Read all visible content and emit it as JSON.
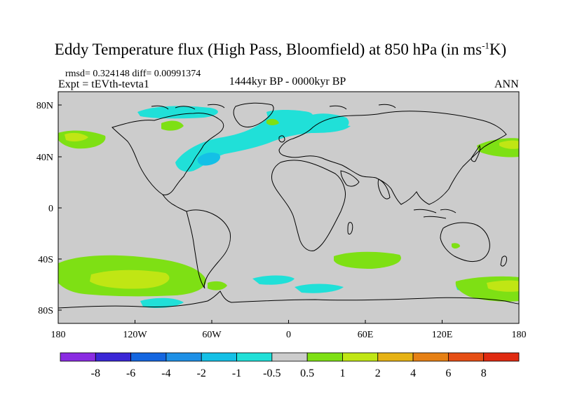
{
  "title_main": "Eddy Temperature flux (High Pass, Bloomfield) at 850 hPa (in ms",
  "title_sup": "-1",
  "title_end": "K)",
  "stats": "rmsd= 0.324148 diff= 0.00991374",
  "expt": "Expt = tEVth-tevta1",
  "period": "1444kyr BP - 0000kyr BP",
  "season": "ANN",
  "lat_labels": [
    "80N",
    "40N",
    "0",
    "40S",
    "80S"
  ],
  "lon_labels": [
    "180",
    "120W",
    "60W",
    "0",
    "60E",
    "120E",
    "180"
  ],
  "colorbar": {
    "labels": [
      "-8",
      "-6",
      "-4",
      "-2",
      "-1",
      "-0.5",
      "0.5",
      "1",
      "2",
      "4",
      "6",
      "8"
    ],
    "colors": [
      "#8a2be2",
      "#3a26d6",
      "#1466e0",
      "#1e90e6",
      "#14c0e6",
      "#20e0d8",
      "#cccccc",
      "#7ee014",
      "#c0e614",
      "#e6b214",
      "#e68014",
      "#e64e14",
      "#e02a10"
    ]
  },
  "colors": {
    "land_ocean_neutral": "#cccccc",
    "positive_weak": "#7ee014",
    "positive_mid": "#c0e614",
    "negative_weak": "#20e0d8",
    "negative_mid": "#14c0e6"
  }
}
